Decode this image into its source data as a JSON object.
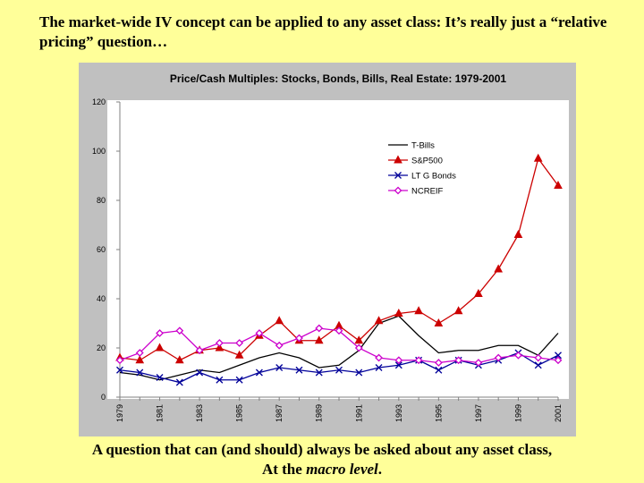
{
  "slide": {
    "title": "The market-wide IV concept can be applied to any asset class: It’s really just a “relative pricing” question…",
    "caption_line1": "A question that can (and should) always be asked about any asset class,",
    "caption_line2_prefix": "At the ",
    "caption_line2_emphasis": "macro level",
    "caption_line2_suffix": "."
  },
  "chart_data": {
    "type": "line",
    "title": "Price/Cash Multiples: Stocks, Bonds, Bills, Real Estate: 1979-2001",
    "xlabel": "",
    "ylabel": "",
    "ylim": [
      0,
      120
    ],
    "yticks": [
      0,
      20,
      40,
      60,
      80,
      100,
      120
    ],
    "x": [
      1979,
      1980,
      1981,
      1982,
      1983,
      1984,
      1985,
      1986,
      1987,
      1988,
      1989,
      1990,
      1991,
      1992,
      1993,
      1994,
      1995,
      1996,
      1997,
      1998,
      1999,
      2000,
      2001
    ],
    "xtick_labels": [
      "1979",
      "1981",
      "1983",
      "1985",
      "1987",
      "1989",
      "1991",
      "1993",
      "1995",
      "1997",
      "1999",
      "2001"
    ],
    "grid": false,
    "legend_position": "upper-right",
    "background_color": "#c0c0c0",
    "plot_background_color": "#ffffff",
    "series": [
      {
        "name": "T-Bills",
        "color": "#000000",
        "marker": "none",
        "values": [
          10,
          9,
          7,
          9,
          11,
          10,
          13,
          16,
          18,
          16,
          12,
          13,
          19,
          30,
          33,
          25,
          18,
          19,
          19,
          21,
          21,
          17,
          26
        ]
      },
      {
        "name": "S&P500",
        "color": "#cc0000",
        "marker": "triangle",
        "values": [
          16,
          15,
          20,
          15,
          19,
          20,
          17,
          25,
          31,
          23,
          23,
          29,
          23,
          31,
          34,
          35,
          30,
          35,
          42,
          52,
          66,
          97,
          86
        ]
      },
      {
        "name": "LT G Bonds",
        "color": "#000099",
        "marker": "x",
        "values": [
          11,
          10,
          8,
          6,
          10,
          7,
          7,
          10,
          12,
          11,
          10,
          11,
          10,
          12,
          13,
          15,
          11,
          15,
          13,
          15,
          18,
          13,
          17
        ]
      },
      {
        "name": "NCREIF",
        "color": "#cc00cc",
        "marker": "diamond",
        "values": [
          15,
          18,
          26,
          27,
          19,
          22,
          22,
          26,
          21,
          24,
          28,
          27,
          20,
          16,
          15,
          15,
          14,
          15,
          14,
          16,
          17,
          16,
          15
        ]
      }
    ]
  }
}
